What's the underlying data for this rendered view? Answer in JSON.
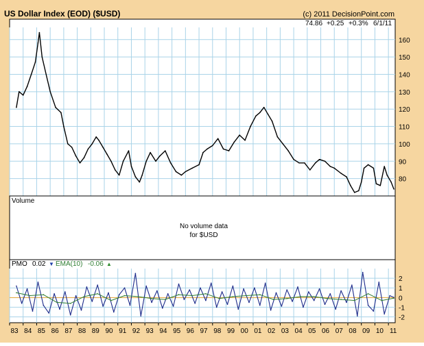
{
  "header": {
    "title": "US Dollar Index (EOD) ($USD)",
    "copyright": "(c) 2011 DecisionPoint.com",
    "quote": {
      "last": "74.86",
      "change": "+0.25",
      "percent": "+0.3%",
      "date": "6/1/11"
    }
  },
  "volume_panel": {
    "label": "Volume",
    "message_line1": "No volume data",
    "message_line2": "for $USD"
  },
  "pmo_panel": {
    "pmo_label": "PMO",
    "pmo_value": "0.02",
    "pmo_arrow": "▼",
    "ema_label": "EMA(10)",
    "ema_value": "-0.06",
    "ema_arrow": "▲"
  },
  "colors": {
    "background": "#f6d6a0",
    "panel": "#ffffff",
    "grid": "#a9d3e8",
    "price_line": "#000000",
    "pmo_line": "#1c2a8a",
    "ema_line": "#2e7d32",
    "zero_line": "#e0a030",
    "arrow_down": "#1f3fa8",
    "arrow_up": "#2e8b2e"
  },
  "chart_data": [
    {
      "type": "line",
      "panel": "price",
      "title": "US Dollar Index (EOD) ($USD)",
      "xlim": [
        1983.0,
        2011.5
      ],
      "ylim": [
        70,
        167
      ],
      "x_ticks": [
        1983,
        1984,
        1985,
        1986,
        1987,
        1988,
        1989,
        1990,
        1991,
        1992,
        1993,
        1994,
        1995,
        1996,
        1997,
        1998,
        1999,
        2000,
        2001,
        2002,
        2003,
        2004,
        2005,
        2006,
        2007,
        2008,
        2009,
        2010,
        2011
      ],
      "x_tick_labels": [
        "83",
        "84",
        "85",
        "86",
        "87",
        "88",
        "89",
        "90",
        "91",
        "92",
        "93",
        "94",
        "95",
        "96",
        "97",
        "98",
        "99",
        "00",
        "01",
        "02",
        "03",
        "04",
        "05",
        "06",
        "07",
        "08",
        "09",
        "10",
        "11"
      ],
      "y_ticks": [
        80,
        90,
        100,
        110,
        120,
        130,
        140,
        150,
        160
      ],
      "y_tick_labels": [
        "80",
        "90",
        "100",
        "110",
        "120",
        "130",
        "140",
        "150",
        "160"
      ],
      "grid": true,
      "series": [
        {
          "name": "$USD",
          "x": [
            1983.5,
            1983.7,
            1984.0,
            1984.3,
            1984.6,
            1984.9,
            1985.1,
            1985.2,
            1985.4,
            1985.7,
            1986.0,
            1986.4,
            1986.8,
            1987.0,
            1987.3,
            1987.6,
            1987.9,
            1988.2,
            1988.5,
            1988.8,
            1989.1,
            1989.4,
            1989.6,
            1989.9,
            1990.2,
            1990.5,
            1990.8,
            1991.1,
            1991.4,
            1991.8,
            1992.0,
            1992.3,
            1992.6,
            1992.8,
            1993.1,
            1993.4,
            1993.8,
            1994.1,
            1994.5,
            1994.9,
            1995.3,
            1995.7,
            1996.0,
            1996.5,
            1997.0,
            1997.3,
            1997.6,
            1998.0,
            1998.4,
            1998.8,
            1999.2,
            1999.6,
            2000.0,
            2000.4,
            2000.8,
            2001.2,
            2001.5,
            2001.8,
            2002.1,
            2002.4,
            2002.8,
            2003.2,
            2003.6,
            2004.0,
            2004.4,
            2004.8,
            2005.2,
            2005.6,
            2005.9,
            2006.3,
            2006.7,
            2007.0,
            2007.5,
            2007.9,
            2008.2,
            2008.5,
            2008.8,
            2009.0,
            2009.2,
            2009.5,
            2009.9,
            2010.1,
            2010.4,
            2010.7,
            2010.9,
            2011.2,
            2011.4
          ],
          "y": [
            121,
            130,
            128,
            133,
            140,
            147,
            158,
            164,
            150,
            140,
            130,
            121,
            118,
            110,
            100,
            98,
            93,
            89,
            92,
            97,
            100,
            104,
            102,
            98,
            94,
            90,
            85,
            82,
            90,
            96,
            87,
            81,
            78,
            82,
            90,
            95,
            90,
            93,
            96,
            89,
            84,
            82,
            84,
            86,
            88,
            95,
            97,
            99,
            103,
            97,
            96,
            101,
            105,
            102,
            110,
            116,
            118,
            121,
            117,
            113,
            104,
            100,
            96,
            91,
            89,
            89,
            85,
            89,
            91,
            90,
            87,
            86,
            83,
            81,
            76,
            72,
            73,
            78,
            86,
            88,
            86,
            77,
            76,
            87,
            82,
            78,
            74
          ]
        }
      ]
    },
    {
      "type": "line",
      "panel": "pmo",
      "xlim": [
        1983.0,
        2011.5
      ],
      "ylim": [
        -2.6,
        3.0
      ],
      "y_ticks": [
        -2,
        -1,
        0,
        1,
        2
      ],
      "y_tick_labels": [
        "-2",
        "-1",
        "0",
        "1",
        "2"
      ],
      "grid": true,
      "series": [
        {
          "name": "PMO",
          "x": [
            1983.5,
            1983.9,
            1984.3,
            1984.7,
            1985.1,
            1985.5,
            1985.9,
            1986.3,
            1986.7,
            1987.1,
            1987.5,
            1987.9,
            1988.3,
            1988.7,
            1989.1,
            1989.5,
            1989.9,
            1990.3,
            1990.7,
            1991.1,
            1991.5,
            1991.9,
            1992.3,
            1992.7,
            1993.1,
            1993.5,
            1993.9,
            1994.3,
            1994.7,
            1995.1,
            1995.5,
            1995.9,
            1996.3,
            1996.7,
            1997.1,
            1997.5,
            1997.9,
            1998.3,
            1998.7,
            1999.1,
            1999.5,
            1999.9,
            2000.3,
            2000.7,
            2001.1,
            2001.5,
            2001.9,
            2002.3,
            2002.7,
            2003.1,
            2003.5,
            2003.9,
            2004.3,
            2004.7,
            2005.1,
            2005.5,
            2005.9,
            2006.3,
            2006.7,
            2007.1,
            2007.5,
            2007.9,
            2008.3,
            2008.7,
            2009.1,
            2009.5,
            2009.9,
            2010.3,
            2010.7,
            2011.1,
            2011.4
          ],
          "y": [
            1.2,
            -0.6,
            0.9,
            -1.4,
            1.6,
            -0.8,
            -1.6,
            0.4,
            -1.2,
            0.6,
            -1.8,
            0.2,
            -1.3,
            1.1,
            -0.4,
            1.3,
            -0.9,
            0.5,
            -1.5,
            0.3,
            1.0,
            -0.8,
            2.5,
            -1.9,
            1.2,
            -0.5,
            0.7,
            -1.1,
            0.4,
            -0.9,
            1.4,
            -0.2,
            0.8,
            -0.6,
            1.0,
            -0.3,
            1.5,
            -1.0,
            0.6,
            -0.7,
            1.2,
            -1.2,
            0.9,
            -0.5,
            1.0,
            -0.8,
            1.5,
            -1.3,
            0.5,
            -0.9,
            0.8,
            -0.4,
            1.1,
            -1.0,
            0.6,
            -0.3,
            0.9,
            -0.7,
            0.4,
            -1.2,
            0.7,
            -0.5,
            1.3,
            -1.9,
            2.6,
            -0.8,
            -1.4,
            1.6,
            -1.7,
            0.2,
            0.02
          ]
        },
        {
          "name": "EMA(10)",
          "x": [
            1983.5,
            1984.5,
            1985.5,
            1986.5,
            1987.5,
            1988.5,
            1989.5,
            1990.5,
            1991.5,
            1992.5,
            1993.5,
            1994.5,
            1995.5,
            1996.5,
            1997.5,
            1998.5,
            1999.5,
            2000.5,
            2001.5,
            2002.5,
            2003.5,
            2004.5,
            2005.5,
            2006.5,
            2007.5,
            2008.5,
            2009.5,
            2010.5,
            2011.4
          ],
          "y": [
            0.5,
            0.2,
            0.3,
            -0.5,
            -0.6,
            0.1,
            0.4,
            -0.3,
            0.2,
            0.1,
            -0.1,
            -0.2,
            0.3,
            0.2,
            0.4,
            -0.1,
            0.1,
            0.2,
            0.3,
            -0.2,
            -0.1,
            0.1,
            0.1,
            -0.1,
            -0.2,
            -0.3,
            0.4,
            -0.3,
            -0.06
          ]
        }
      ]
    }
  ]
}
